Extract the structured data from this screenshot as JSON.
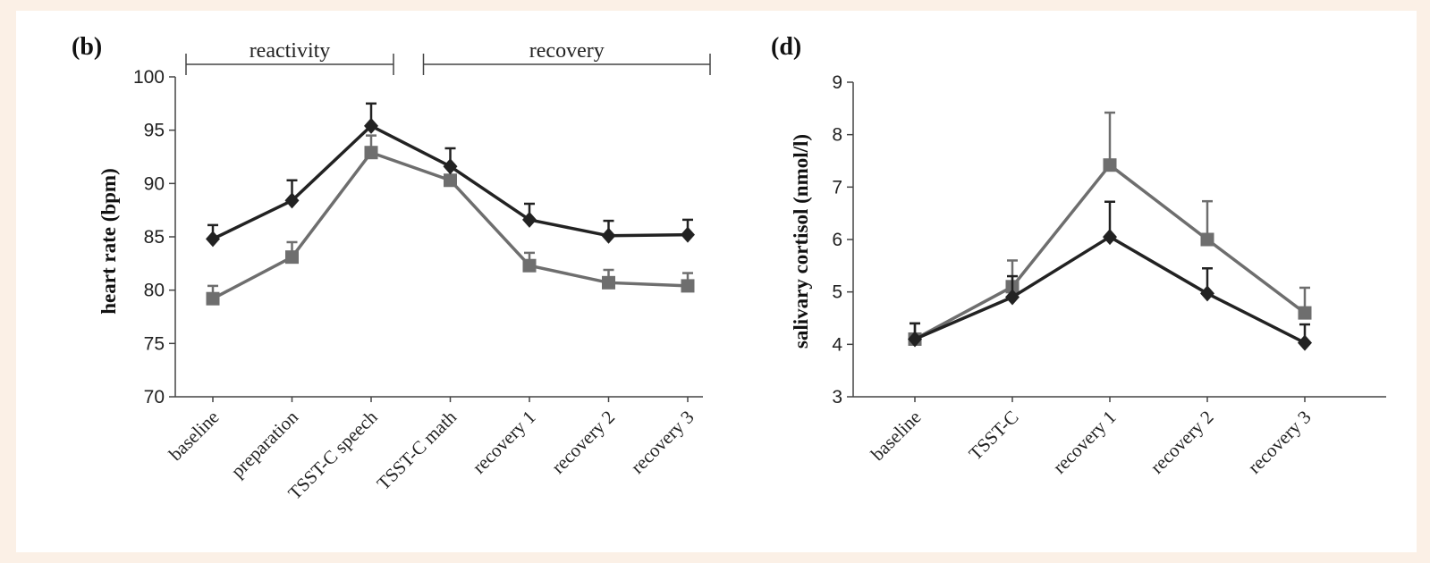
{
  "chart_data": [
    {
      "type": "line",
      "panel_label": "(b)",
      "title": "",
      "ylabel": "heart rate (bpm)",
      "xlabel": "",
      "ylim": [
        70,
        100
      ],
      "yticks": [
        70,
        75,
        80,
        85,
        90,
        95,
        100
      ],
      "categories": [
        "baseline",
        "preparation",
        "TSST-C speech",
        "TSST-C math",
        "recovery 1",
        "recovery 2",
        "recovery 3"
      ],
      "phases": [
        {
          "label": "reactivity",
          "from": "baseline",
          "to": "TSST-C speech"
        },
        {
          "label": "recovery",
          "from": "TSST-C math",
          "to": "recovery 3"
        }
      ],
      "grid": false,
      "series": [
        {
          "marker": "diamond",
          "color": "#222222",
          "values": [
            84.8,
            88.4,
            95.4,
            91.6,
            86.6,
            85.1,
            85.2
          ],
          "error": [
            1.3,
            1.9,
            2.1,
            1.7,
            1.5,
            1.4,
            1.4
          ]
        },
        {
          "marker": "square",
          "color": "#6e6e6e",
          "values": [
            79.2,
            83.1,
            92.9,
            90.3,
            82.3,
            80.7,
            80.4
          ],
          "error": [
            1.2,
            1.4,
            1.6,
            1.4,
            1.2,
            1.2,
            1.2
          ]
        }
      ]
    },
    {
      "type": "line",
      "panel_label": "(d)",
      "title": "",
      "ylabel": "salivary cortisol (nmol/l)",
      "xlabel": "",
      "ylim": [
        3,
        9
      ],
      "yticks": [
        3,
        4,
        5,
        6,
        7,
        8,
        9
      ],
      "categories": [
        "baseline",
        "TSST-C",
        "recovery 1",
        "recovery 2",
        "recovery 3"
      ],
      "grid": false,
      "series": [
        {
          "marker": "diamond",
          "color": "#222222",
          "values": [
            4.1,
            4.9,
            6.05,
            4.97,
            4.03
          ],
          "error": [
            0.3,
            0.4,
            0.67,
            0.48,
            0.35
          ]
        },
        {
          "marker": "square",
          "color": "#6e6e6e",
          "values": [
            4.1,
            5.1,
            7.42,
            6.0,
            4.6
          ],
          "error": [
            0.3,
            0.5,
            1.0,
            0.73,
            0.48
          ]
        }
      ]
    }
  ]
}
